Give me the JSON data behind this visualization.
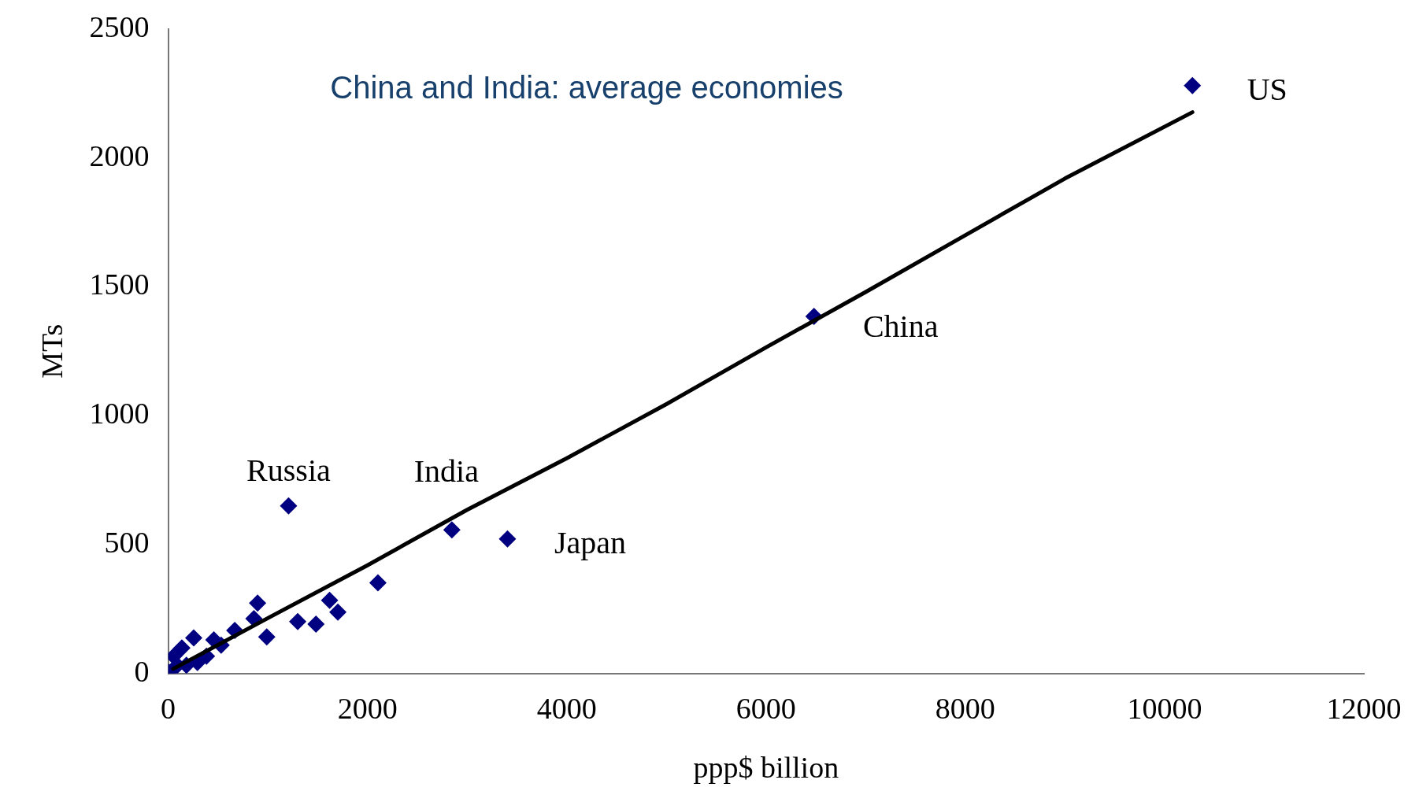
{
  "chart_data": {
    "type": "scatter",
    "title": "China and India: average economies",
    "xlabel": "ppp$ billion",
    "ylabel": "MTs",
    "xlim": [
      0,
      12000
    ],
    "xticks": [
      0,
      2000,
      4000,
      6000,
      8000,
      10000,
      12000
    ],
    "ylim": [
      0,
      2500
    ],
    "yticks": [
      0,
      500,
      1000,
      1500,
      2000,
      2500
    ],
    "grid": false,
    "legend": false,
    "series": [
      {
        "type": "scatter",
        "color": "#000080",
        "marker": "diamond",
        "x": [
          10279,
          6481,
          3405,
          2847,
          1208,
          2105,
          1703,
          1620,
          1483,
          1300,
          989,
          897,
          860,
          668,
          458,
          256,
          137,
          55,
          531,
          384,
          293,
          183,
          92,
          5
        ],
        "values": [
          2280,
          1385,
          522,
          557,
          650,
          352,
          238,
          284,
          192,
          202,
          142,
          273,
          213,
          167,
          131,
          138,
          99,
          67,
          110,
          67,
          43,
          32,
          32,
          5
        ]
      },
      {
        "type": "line",
        "color": "#000000",
        "marker": "none",
        "line_style": "solid",
        "x": [
          50,
          1000,
          2000,
          3000,
          4000,
          5000,
          6000,
          7000,
          8000,
          9000,
          10279
        ],
        "values": [
          18,
          215,
          420,
          635,
          835,
          1045,
          1265,
          1480,
          1700,
          1920,
          2177
        ]
      }
    ],
    "annotations": [
      {
        "text": "US",
        "x": 10279,
        "y": 2280
      },
      {
        "text": "China",
        "x": 6481,
        "y": 1385
      },
      {
        "text": "Japan",
        "x": 3405,
        "y": 522
      },
      {
        "text": "India",
        "x": 2847,
        "y": 557
      },
      {
        "text": "Russia",
        "x": 1208,
        "y": 650
      }
    ]
  }
}
